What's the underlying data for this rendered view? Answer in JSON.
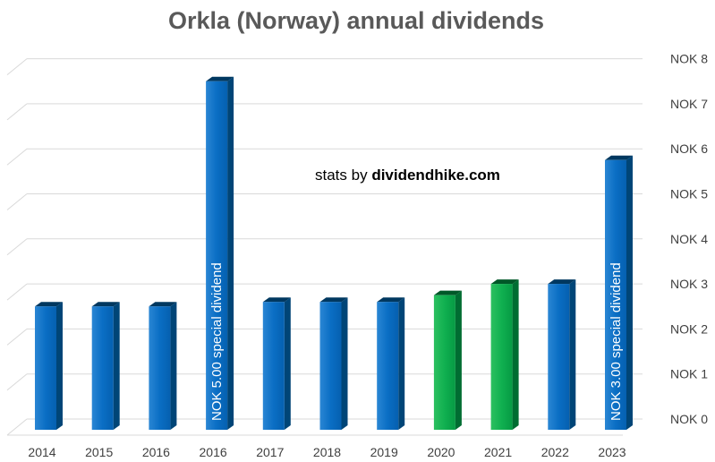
{
  "chart_data": {
    "type": "bar",
    "title": "Orkla (Norway) annual dividends",
    "annotation_prefix": "stats by ",
    "annotation_brand": "dividendhike.com",
    "categories": [
      "2014",
      "2015",
      "2016",
      "2016",
      "2017",
      "2018",
      "2019",
      "2020",
      "2021",
      "2022",
      "2023"
    ],
    "values": [
      2.5,
      2.5,
      2.5,
      7.5,
      2.6,
      2.6,
      2.6,
      2.75,
      3.0,
      3.0,
      5.75
    ],
    "bar_colors": [
      "#0070c0",
      "#0070c0",
      "#0070c0",
      "#0070c0",
      "#0070c0",
      "#0070c0",
      "#0070c0",
      "#00b050",
      "#00b050",
      "#0070c0",
      "#0070c0"
    ],
    "bar_notes": [
      "",
      "",
      "",
      "NOK 5.00  special dividend",
      "",
      "",
      "",
      "",
      "",
      "",
      "NOK 3.00 special dividend"
    ],
    "y_ticks": [
      "NOK 0",
      "NOK 1",
      "NOK 2",
      "NOK 3",
      "NOK 4",
      "NOK 5",
      "NOK 6",
      "NOK 7",
      "NOK 8"
    ],
    "ylim": [
      0,
      8
    ],
    "y_axis_position": "right",
    "grid": true
  }
}
